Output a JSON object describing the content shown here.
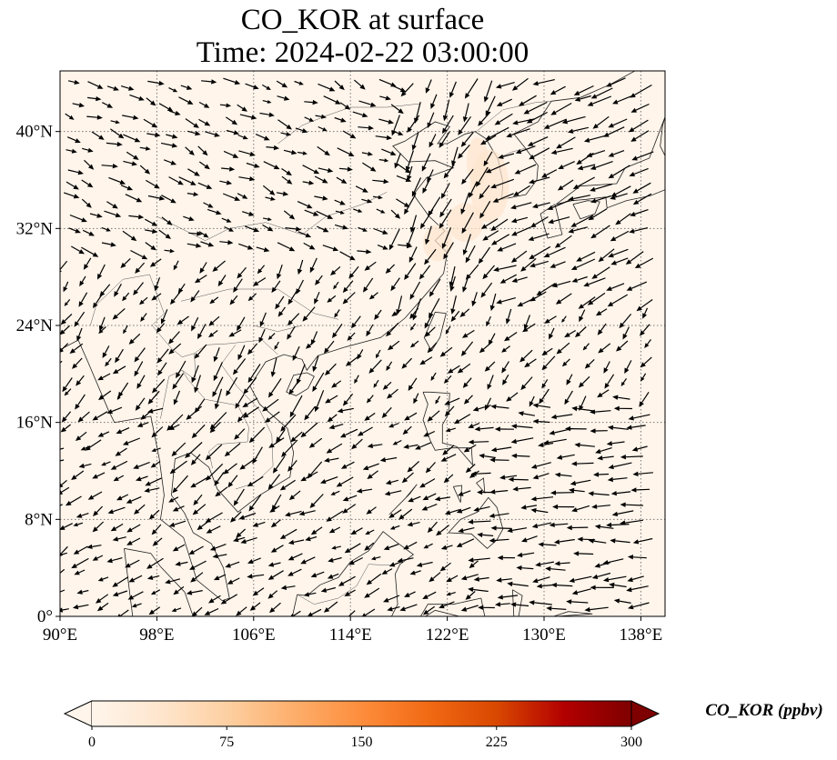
{
  "title": {
    "line1": "CO_KOR at surface",
    "line2": "Time: 2024-02-22 03:00:00"
  },
  "map": {
    "lon_range": [
      90,
      140
    ],
    "lat_range": [
      0,
      45
    ],
    "lon_ticks": [
      {
        "value": 90,
        "label": "90°E"
      },
      {
        "value": 98,
        "label": "98°E"
      },
      {
        "value": 106,
        "label": "106°E"
      },
      {
        "value": 114,
        "label": "114°E"
      },
      {
        "value": 122,
        "label": "122°E"
      },
      {
        "value": 130,
        "label": "130°E"
      },
      {
        "value": 138,
        "label": "138°E"
      }
    ],
    "lat_ticks": [
      {
        "value": 0,
        "label": "0°"
      },
      {
        "value": 8,
        "label": "8°N"
      },
      {
        "value": 16,
        "label": "16°N"
      },
      {
        "value": 24,
        "label": "24°N"
      },
      {
        "value": 32,
        "label": "32°N"
      },
      {
        "value": 40,
        "label": "40°N"
      }
    ],
    "background_color": "#fff5eb",
    "gridlines": "dotted",
    "wind_field": "quiver"
  },
  "colorbar": {
    "label": "CO_KOR (ppbv)",
    "colormap": "OrRd",
    "colors": [
      "#fff5eb",
      "#fee6ce",
      "#fdd0a2",
      "#fdae6b",
      "#fd8d3c",
      "#f16913",
      "#d94801",
      "#b30000",
      "#7f0000"
    ],
    "extend": "both",
    "ticks": [
      {
        "value": 0,
        "label": "0"
      },
      {
        "value": 75,
        "label": "75"
      },
      {
        "value": 150,
        "label": "150"
      },
      {
        "value": 225,
        "label": "225"
      },
      {
        "value": 300,
        "label": "300"
      }
    ],
    "range": [
      0,
      300
    ]
  }
}
